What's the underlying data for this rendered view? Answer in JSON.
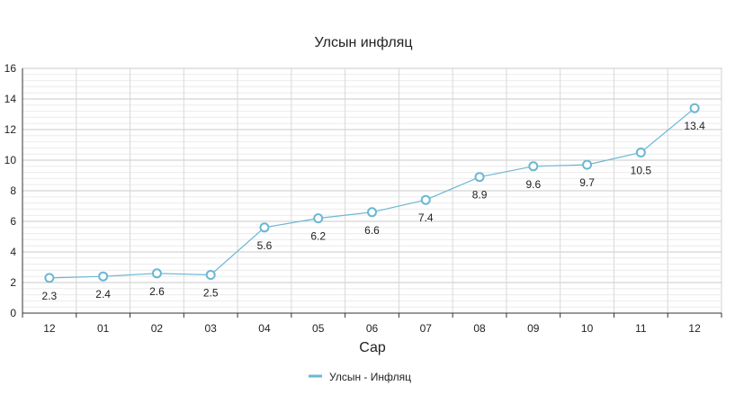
{
  "chart_data": {
    "type": "line",
    "title": "Улсын инфляц",
    "xlabel": "Сар",
    "ylabel": "",
    "categories": [
      "12",
      "01",
      "02",
      "03",
      "04",
      "05",
      "06",
      "07",
      "08",
      "09",
      "10",
      "11",
      "12"
    ],
    "series": [
      {
        "name": "Улсын - Инфляц",
        "values": [
          2.3,
          2.4,
          2.6,
          2.5,
          5.6,
          6.2,
          6.6,
          7.4,
          8.9,
          9.6,
          9.7,
          10.5,
          13.4
        ],
        "color": "#6bb7d3"
      }
    ],
    "ylim": [
      0,
      16
    ],
    "yticks": [
      0,
      2,
      4,
      6,
      8,
      10,
      12,
      14,
      16
    ],
    "grid": true,
    "legend": "bottom-center"
  }
}
